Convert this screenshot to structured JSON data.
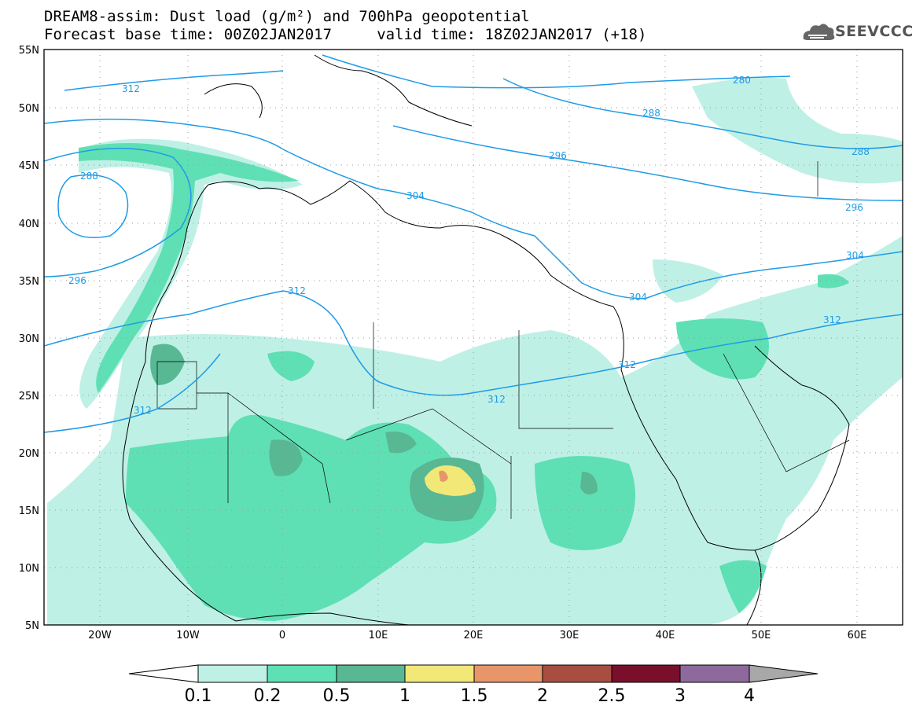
{
  "header": {
    "line1": "DREAM8-assim: Dust load (g/m²) and 700hPa geopotential",
    "line2": "Forecast base time: 00Z02JAN2017     valid time: 18Z02JAN2017 (+18)"
  },
  "logo": {
    "text": "SEEVCCC",
    "icon": "cloud-icon"
  },
  "axes": {
    "lat_labels": [
      "55N",
      "50N",
      "45N",
      "40N",
      "35N",
      "30N",
      "25N",
      "20N",
      "15N",
      "10N",
      "5N"
    ],
    "lon_labels": [
      "20W",
      "10W",
      "0",
      "10E",
      "20E",
      "30E",
      "40E",
      "50E",
      "60E"
    ]
  },
  "contour_labels": [
    "312",
    "280",
    "288",
    "296",
    "288",
    "304",
    "296",
    "304",
    "312",
    "296",
    "312",
    "312",
    "304",
    "312",
    "312",
    "288"
  ],
  "colorbar": {
    "labels": [
      "0.1",
      "0.2",
      "0.5",
      "1",
      "1.5",
      "2",
      "2.5",
      "3",
      "4"
    ],
    "colors": [
      "#bff0e6",
      "#5fe0b4",
      "#58b894",
      "#f2e878",
      "#e8956a",
      "#a84e40",
      "#7a0f2c",
      "#8e6a9c"
    ],
    "over_color": "#a8a8a8"
  },
  "colors": {
    "contour": "#1f9be6",
    "coast": "#000000"
  }
}
